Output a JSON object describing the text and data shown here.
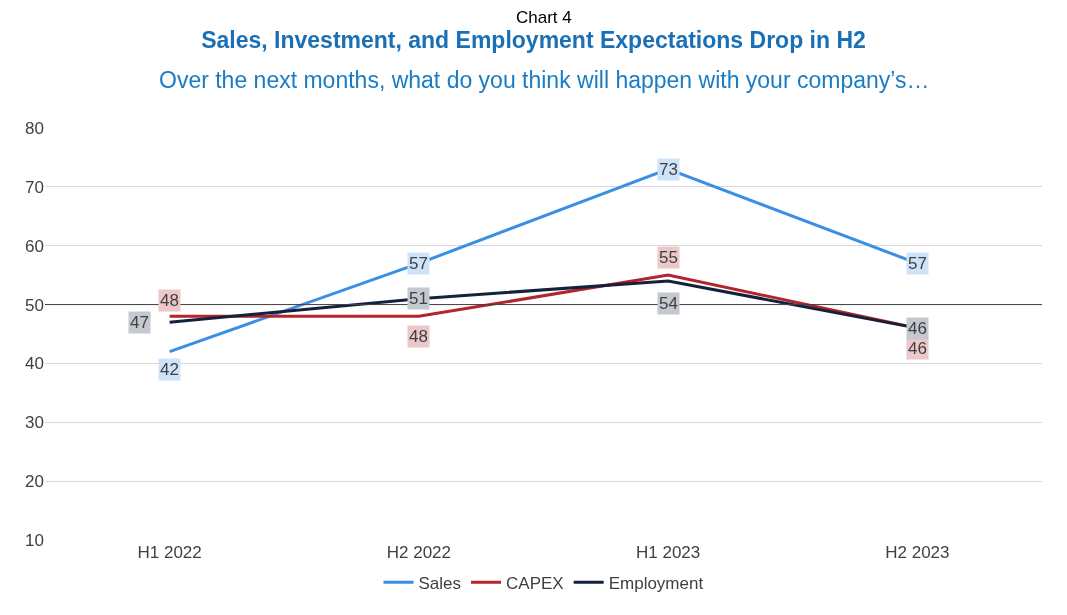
{
  "chart_data": {
    "type": "line",
    "title": "Sales, Investment, and Employment Expectations Drop in H2",
    "subtitle": "Over the next months, what do you think will happen with your company’s…",
    "annotations": [
      "Chart 4"
    ],
    "categories": [
      "H1 2022",
      "H2 2022",
      "H1 2023",
      "H2 2023"
    ],
    "series": [
      {
        "name": "Sales",
        "color": "#3a8ee6",
        "values": [
          42,
          57,
          73,
          57
        ]
      },
      {
        "name": "CAPEX",
        "color": "#b3242b",
        "values": [
          48,
          48,
          55,
          46
        ]
      },
      {
        "name": "Employment",
        "color": "#14213d",
        "values": [
          47,
          51,
          54,
          46
        ]
      }
    ],
    "ylim": [
      10,
      80
    ],
    "yticks": [
      10,
      20,
      30,
      40,
      50,
      60,
      70,
      80
    ],
    "grid": "y",
    "legend": "bottom",
    "data_labels": true,
    "line_style": "solid",
    "ref_lines": [
      {
        "axis": "y",
        "value": 50,
        "color": "#404040"
      }
    ]
  }
}
